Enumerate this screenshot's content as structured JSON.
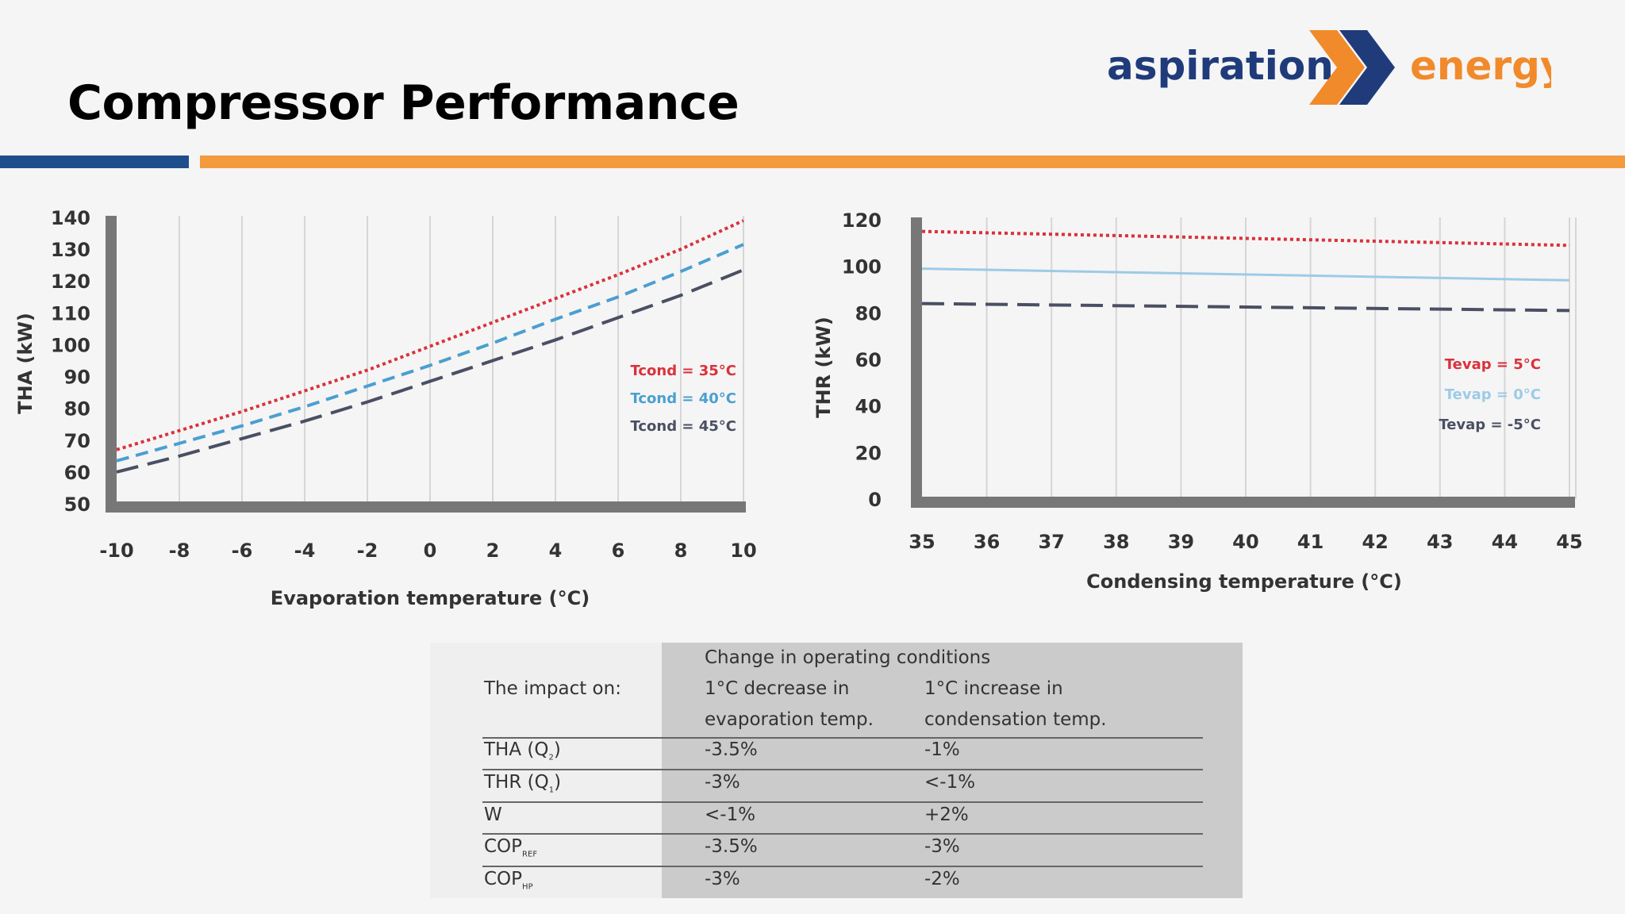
{
  "page": {
    "title": "Compressor Performance"
  },
  "logo": {
    "word1": "aspiration",
    "word2": "energy",
    "colors": {
      "blue": "#1f3b7a",
      "orange": "#f18a2a"
    }
  },
  "chart_data": [
    {
      "type": "line",
      "ylabel": "THA (kW)",
      "xlabel": "Evaporation temperature (°C)",
      "x_ticks": [
        -10,
        -8,
        -6,
        -4,
        -2,
        0,
        2,
        4,
        6,
        8,
        10
      ],
      "y_ticks": [
        50,
        60,
        70,
        80,
        90,
        100,
        110,
        120,
        130,
        140
      ],
      "xlim": [
        -10,
        10
      ],
      "ylim": [
        50,
        140
      ],
      "grid": "vertical",
      "legend": "right",
      "series": [
        {
          "name": "Tcond = 35°C",
          "color": "#d9323c",
          "dash": "dotted",
          "x": [
            -10,
            -8,
            -6,
            -4,
            -2,
            0,
            2,
            4,
            6,
            8,
            10
          ],
          "values": [
            67,
            73,
            79,
            85.5,
            92,
            99.5,
            107,
            114.5,
            122,
            130,
            139
          ]
        },
        {
          "name": "Tcond = 40°C",
          "color": "#4a9fd0",
          "dash": "dashed",
          "x": [
            -10,
            -8,
            -6,
            -4,
            -2,
            0,
            2,
            4,
            6,
            8,
            10
          ],
          "values": [
            63.5,
            69,
            74.5,
            80.5,
            87,
            93.5,
            100.5,
            108,
            115,
            123,
            131.5
          ]
        },
        {
          "name": "Tcond = 45°C",
          "color": "#4a4f63",
          "dash": "longdash",
          "x": [
            -10,
            -8,
            -6,
            -4,
            -2,
            0,
            2,
            4,
            6,
            8,
            10
          ],
          "values": [
            60,
            65,
            70.5,
            76,
            82,
            88.5,
            95,
            101.5,
            108.5,
            115.5,
            123.5
          ]
        }
      ]
    },
    {
      "type": "line",
      "ylabel": "THR (kW)",
      "xlabel": "Condensing temperature (°C)",
      "x_ticks": [
        35,
        36,
        37,
        38,
        39,
        40,
        41,
        42,
        43,
        44,
        45
      ],
      "y_ticks": [
        0,
        20,
        40,
        60,
        80,
        100,
        120
      ],
      "xlim": [
        35,
        45
      ],
      "ylim": [
        0,
        120
      ],
      "grid": "vertical",
      "legend": "right",
      "series": [
        {
          "name": "Tevap = 5°C",
          "color": "#d9323c",
          "dash": "dotted",
          "x": [
            35,
            45
          ],
          "values": [
            115,
            109
          ]
        },
        {
          "name": "Tevap = 0°C",
          "color": "#9ccbe6",
          "dash": "solid",
          "x": [
            35,
            45
          ],
          "values": [
            99,
            94
          ]
        },
        {
          "name": "Tevap = -5°C",
          "color": "#4a4f63",
          "dash": "longdash",
          "x": [
            35,
            45
          ],
          "values": [
            84,
            81
          ]
        }
      ]
    }
  ],
  "table": {
    "header_label": "The impact on:",
    "group_header": "Change in operating conditions",
    "col1": [
      "1°C decrease in",
      "evaporation temp."
    ],
    "col2": [
      "1°C increase in",
      "condensation temp."
    ],
    "rows": [
      {
        "label": "THA (Q",
        "sub": "2",
        "tail": ")",
        "c1": "-3.5%",
        "c2": "-1%"
      },
      {
        "label": "THR (Q",
        "sub": "1",
        "tail": ")",
        "c1": "-3%",
        "c2": "<-1%"
      },
      {
        "label": "W",
        "sub": "",
        "tail": "",
        "c1": "<-1%",
        "c2": "+2%"
      },
      {
        "label": "COP",
        "sub": "REF",
        "tail": "",
        "c1": "-3.5%",
        "c2": "-3%"
      },
      {
        "label": "COP",
        "sub": "HP",
        "tail": "",
        "c1": "-3%",
        "c2": "-2%"
      }
    ]
  }
}
